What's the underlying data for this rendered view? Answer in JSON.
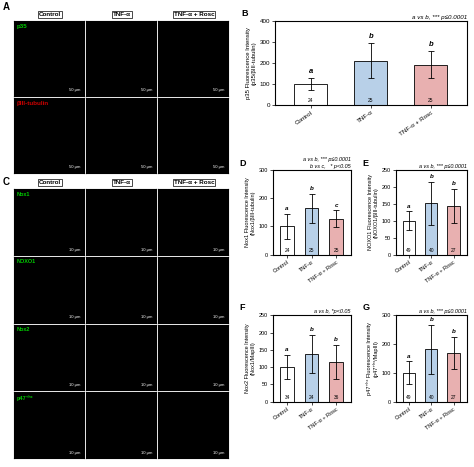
{
  "chart_data": [
    {
      "type": "image",
      "title": "A",
      "categories": [
        "Control",
        "TNF-α",
        "TNF-α + Rosc"
      ],
      "series": [
        {
          "name": "p35",
          "color": "#00cc00"
        },
        {
          "name": "βIII-tubulin",
          "color": "#cc0000"
        }
      ],
      "annotations": [
        "50 μm"
      ],
      "tick_labels": false
    },
    {
      "type": "image",
      "title": "C",
      "categories": [
        "Control",
        "TNF-α",
        "TNF-α + Rosc"
      ],
      "series": [
        {
          "name": "Nox1",
          "color": "#00cc00"
        },
        {
          "name": "NOXO1",
          "color": "#00cc00"
        },
        {
          "name": "Nox2",
          "color": "#00cc00"
        },
        {
          "name": "p47⁺ʰˣ",
          "color": "#00cc00"
        }
      ],
      "annotations": [
        "10 μm"
      ],
      "tick_labels": false
    },
    {
      "type": "bar",
      "title": "B",
      "ylabel": "p35 Fluorescence Intensity\n(p35/βIII-tubulin)",
      "categories": [
        "Control",
        "TNF-α",
        "TNF-α + Rosc"
      ],
      "values": [
        100,
        212,
        193
      ],
      "errors": [
        30,
        85,
        65
      ],
      "n": [
        24,
        25,
        25
      ],
      "letters": [
        "a",
        "b",
        "b"
      ],
      "colors": [
        "white",
        "#b8d0e8",
        "#e8b0b0"
      ],
      "annotations": [
        "a vs b, *** p≤0.0001"
      ],
      "ylim": [
        0,
        400
      ],
      "yticks": [
        0,
        100,
        200,
        300,
        400
      ]
    },
    {
      "type": "bar",
      "title": "D",
      "ylabel": "Nox1 Fluorescence Intensity\n(Nox1/βIII-tubulin)",
      "categories": [
        "Control",
        "TNF-α",
        "TNF-α + Rosc"
      ],
      "values": [
        100,
        165,
        128
      ],
      "errors": [
        45,
        52,
        30
      ],
      "n": [
        24,
        25,
        25
      ],
      "letters": [
        "a",
        "b",
        "c"
      ],
      "colors": [
        "white",
        "#b8d0e8",
        "#e8b0b0"
      ],
      "annotations": [
        "a vs b, *** p≤0.0001",
        "b vs c,   * p<0.05"
      ],
      "ylim": [
        0,
        300
      ],
      "yticks": [
        0,
        100,
        200,
        300
      ]
    },
    {
      "type": "bar",
      "title": "E",
      "ylabel": "NOXO1 Fluorescence Intensity\n(NOXO1/βIII-tubulin)",
      "categories": [
        "Control",
        "TNF-α",
        "TNF-α + Rosc"
      ],
      "values": [
        100,
        152,
        145
      ],
      "errors": [
        28,
        65,
        50
      ],
      "n": [
        49,
        40,
        27
      ],
      "letters": [
        "a",
        "b",
        "b"
      ],
      "colors": [
        "white",
        "#b8d0e8",
        "#e8b0b0"
      ],
      "annotations": [
        "a vs b, *** p≤0.0001"
      ],
      "ylim": [
        0,
        250
      ],
      "yticks": [
        0,
        50,
        100,
        150,
        200,
        250
      ]
    },
    {
      "type": "bar",
      "title": "F",
      "ylabel": "Nox2 Fluorescence Intensity\n(Nox1/MapIII)",
      "categories": [
        "Control",
        "TNF-α",
        "TNF-α + Rosc"
      ],
      "values": [
        100,
        138,
        115
      ],
      "errors": [
        35,
        55,
        50
      ],
      "n": [
        34,
        24,
        36
      ],
      "letters": [
        "a",
        "b",
        "b"
      ],
      "colors": [
        "white",
        "#b8d0e8",
        "#e8b0b0"
      ],
      "annotations": [
        "a vs b, *p<0.05"
      ],
      "ylim": [
        0,
        250
      ],
      "yticks": [
        0,
        50,
        100,
        150,
        200,
        250
      ]
    },
    {
      "type": "bar",
      "title": "G",
      "ylabel": "p47⁺ʰˣ Fluorescence Intensity\n(p47⁺ʰˣ/MapIII)",
      "categories": [
        "Control",
        "TNF-α",
        "TNF-α + Rosc"
      ],
      "values": [
        100,
        182,
        170
      ],
      "errors": [
        40,
        85,
        55
      ],
      "n": [
        49,
        40,
        27
      ],
      "letters": [
        "a",
        "b",
        "b"
      ],
      "colors": [
        "white",
        "#b8d0e8",
        "#e8b0b0"
      ],
      "annotations": [
        "a vs b, *** p≤0.0001"
      ],
      "ylim": [
        0,
        300
      ],
      "yticks": [
        0,
        100,
        200,
        300
      ]
    }
  ]
}
